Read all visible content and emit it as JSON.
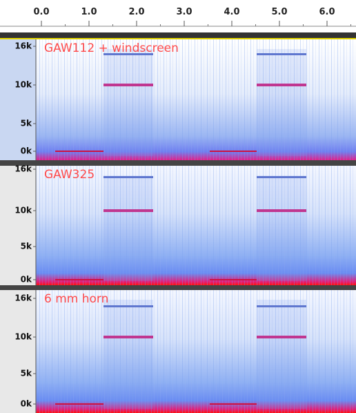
{
  "ruler": {
    "ticks": [
      "0.0",
      "1.0",
      "2.0",
      "3.0",
      "4.0",
      "5.0",
      "6.0"
    ]
  },
  "tracks": [
    {
      "name": "GAW112 + windscreen",
      "yticks": [
        "16k",
        "10k",
        "5k",
        "0k"
      ]
    },
    {
      "name": "GAW325",
      "yticks": [
        "16k",
        "10k",
        "5k",
        "0k"
      ]
    },
    {
      "name": "6 mm horn",
      "yticks": [
        "16k",
        "10k",
        "5k",
        "0k"
      ]
    }
  ]
}
